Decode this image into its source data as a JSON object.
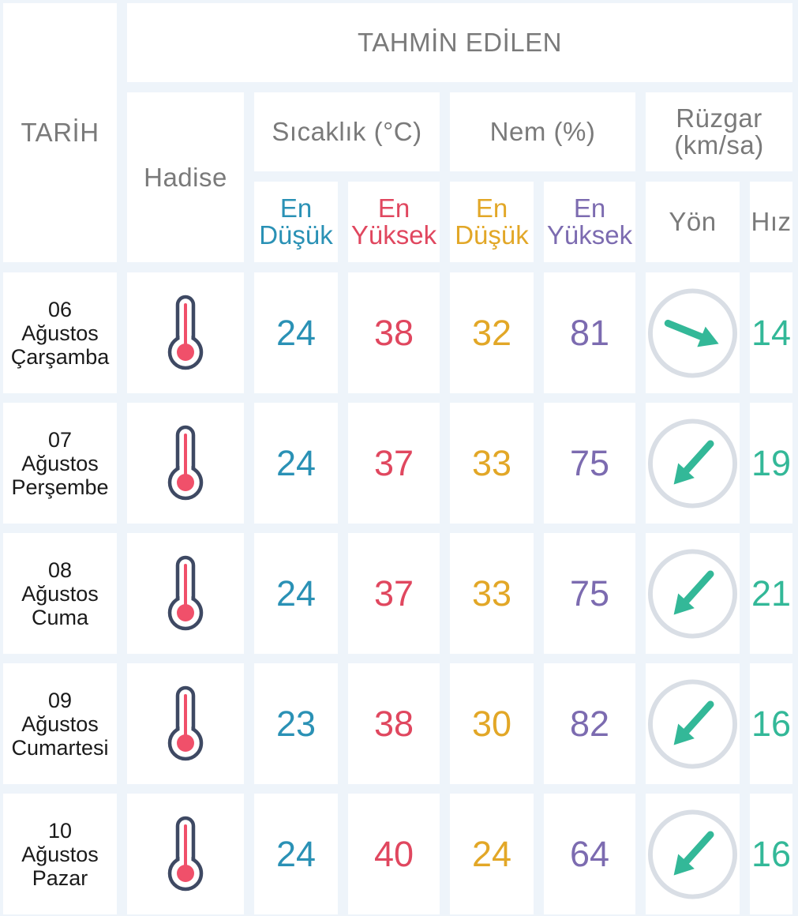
{
  "headers": {
    "tarih": "TARİH",
    "tahmin_edilen": "TAHMİN EDİLEN",
    "hadise": "Hadise",
    "sicaklik": "Sıcaklık (°C)",
    "nem": "Nem (%)",
    "ruzgar_line1": "Rüzgar",
    "ruzgar_line2": "(km/sa)",
    "en": "En",
    "dusuk": "Düşük",
    "yuksek": "Yüksek",
    "yon": "Yön",
    "hiz": "Hız"
  },
  "colors": {
    "min_temp": "#2a91b5",
    "max_temp": "#e0475f",
    "min_humidity": "#e2a727",
    "max_humidity": "#7c6bb0",
    "wind": "#33b898"
  },
  "rows": [
    {
      "day": "06",
      "month": "Ağustos",
      "weekday": "Çarşamba",
      "event_icon": "thermometer-icon",
      "temp_min": "24",
      "temp_max": "38",
      "hum_min": "32",
      "hum_max": "81",
      "wind_dir_icon": "arrow-down-right-icon",
      "wind_speed": "14"
    },
    {
      "day": "07",
      "month": "Ağustos",
      "weekday": "Perşembe",
      "event_icon": "thermometer-icon",
      "temp_min": "24",
      "temp_max": "37",
      "hum_min": "33",
      "hum_max": "75",
      "wind_dir_icon": "arrow-down-left-icon",
      "wind_speed": "19"
    },
    {
      "day": "08",
      "month": "Ağustos",
      "weekday": "Cuma",
      "event_icon": "thermometer-icon",
      "temp_min": "24",
      "temp_max": "37",
      "hum_min": "33",
      "hum_max": "75",
      "wind_dir_icon": "arrow-down-left-icon",
      "wind_speed": "21"
    },
    {
      "day": "09",
      "month": "Ağustos",
      "weekday": "Cumartesi",
      "event_icon": "thermometer-icon",
      "temp_min": "23",
      "temp_max": "38",
      "hum_min": "30",
      "hum_max": "82",
      "wind_dir_icon": "arrow-down-left-icon",
      "wind_speed": "16"
    },
    {
      "day": "10",
      "month": "Ağustos",
      "weekday": "Pazar",
      "event_icon": "thermometer-icon",
      "temp_min": "24",
      "temp_max": "40",
      "hum_min": "24",
      "hum_max": "64",
      "wind_dir_icon": "arrow-down-left-icon",
      "wind_speed": "16"
    }
  ]
}
